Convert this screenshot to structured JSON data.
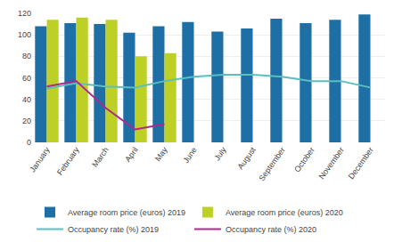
{
  "chart_data": {
    "type": "bar",
    "categories": [
      "January",
      "February",
      "March",
      "April",
      "May",
      "June",
      "July",
      "August",
      "September",
      "October",
      "November",
      "December"
    ],
    "series": [
      {
        "name": "Average room price (euros) 2019",
        "type": "bar",
        "color": "#1d6fa5",
        "values": [
          108,
          111,
          110,
          102,
          108,
          112,
          103,
          106,
          115,
          111,
          114,
          119
        ]
      },
      {
        "name": "Average room price (euros) 2020",
        "type": "bar",
        "color": "#bdd025",
        "values": [
          114,
          116,
          114,
          80,
          83,
          null,
          null,
          null,
          null,
          null,
          null,
          null
        ]
      },
      {
        "name": "Occupancy rate (%) 2019",
        "type": "line",
        "color": "#5bbfbf",
        "values": [
          50,
          55,
          52,
          51,
          57,
          61,
          63,
          63,
          61,
          57,
          57,
          51
        ]
      },
      {
        "name": "Occupancy rate (%) 2020",
        "type": "line",
        "color": "#b0288a",
        "values": [
          52,
          57,
          32,
          12,
          17,
          null,
          null,
          null,
          null,
          null,
          null,
          null
        ]
      }
    ],
    "ylim": [
      0,
      120
    ],
    "yticks": [
      0,
      20,
      40,
      60,
      80,
      100,
      120
    ],
    "grid": true,
    "legend": "bottom"
  }
}
